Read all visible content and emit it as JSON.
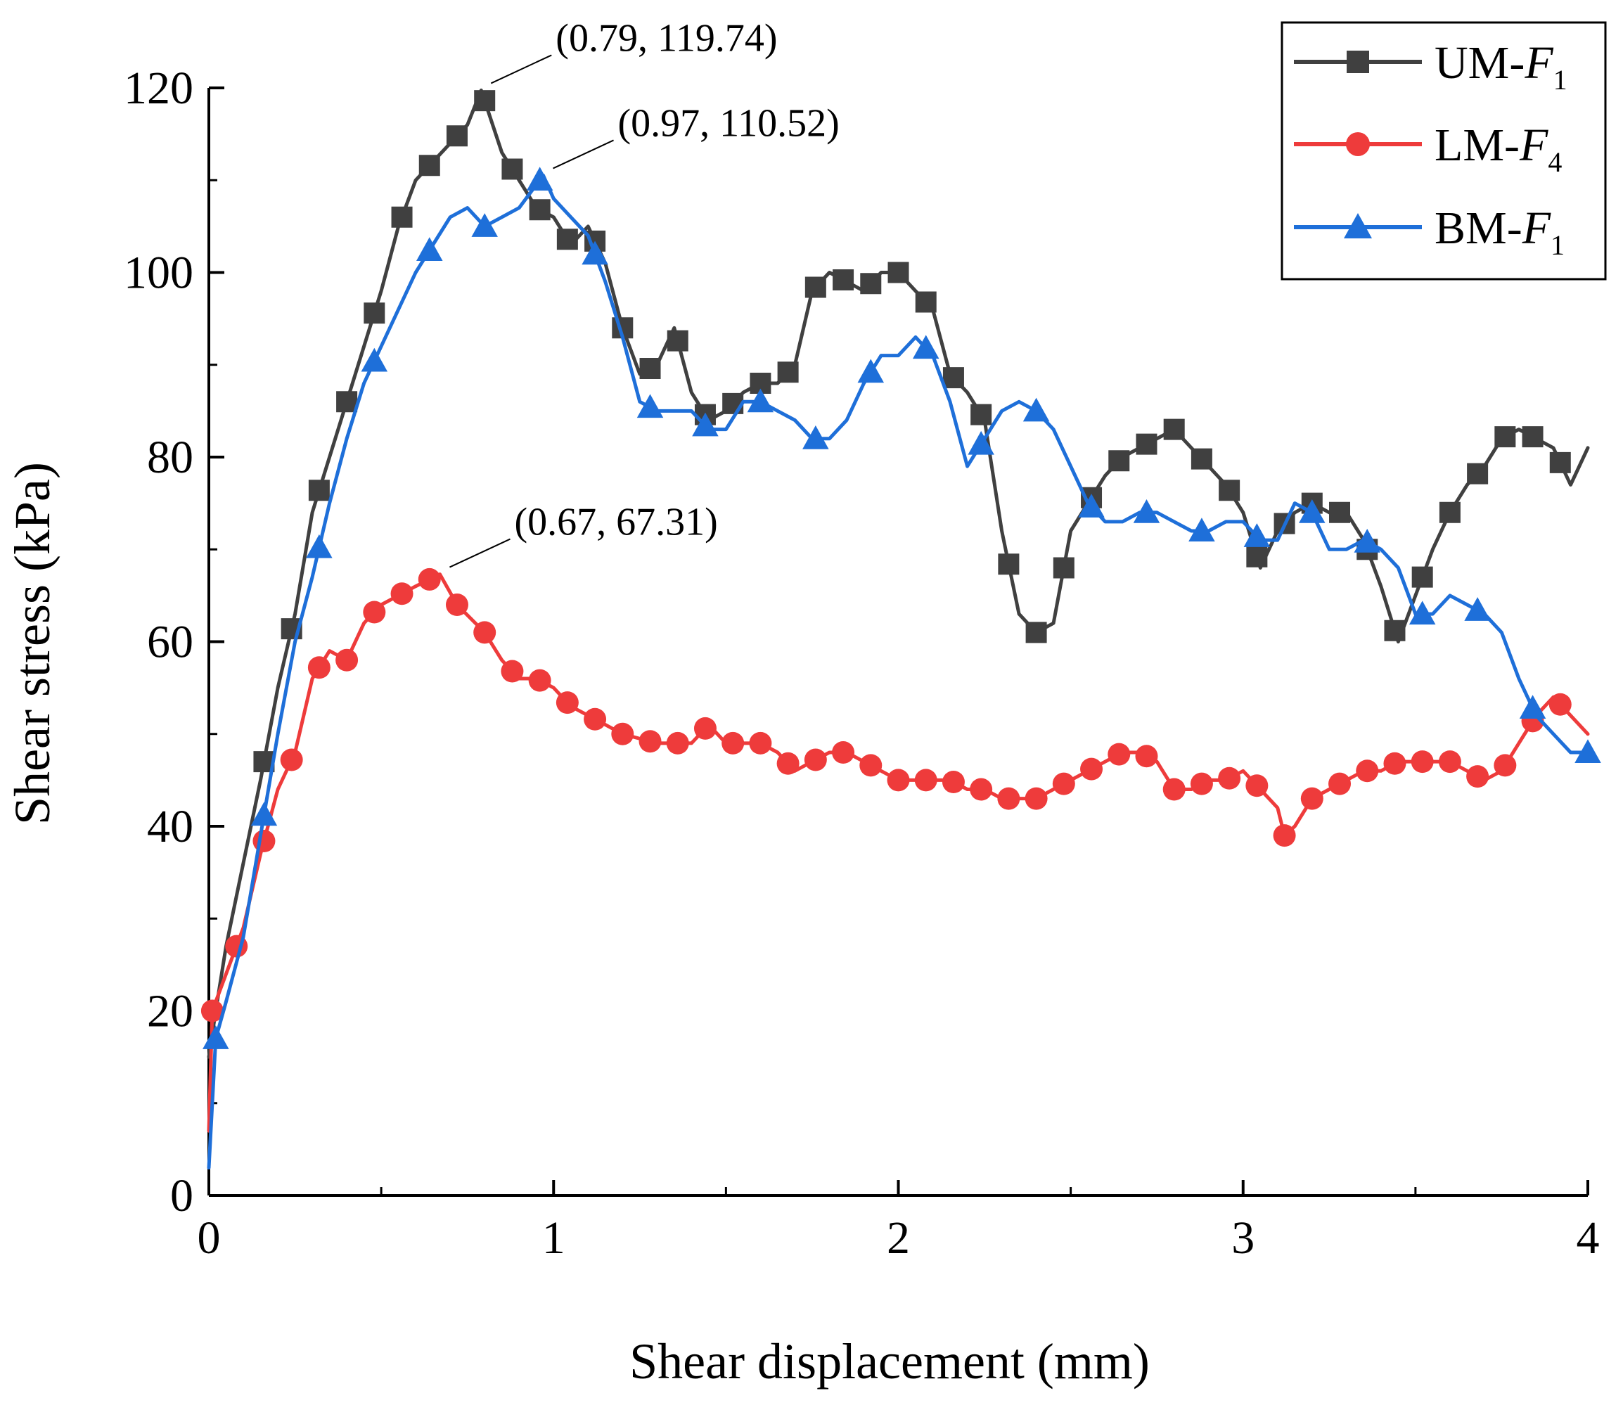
{
  "chart_data": {
    "type": "line",
    "title": "",
    "xlabel": "Shear displacement (mm)",
    "ylabel": "Shear stress (kPa)",
    "xlim": [
      0,
      4
    ],
    "ylim": [
      0,
      120
    ],
    "x_ticks": [
      0,
      1,
      2,
      3,
      4
    ],
    "y_ticks": [
      0,
      20,
      40,
      60,
      80,
      100,
      120
    ],
    "x_minor_step": 0.5,
    "y_minor_step": 10,
    "grid": false,
    "legend_position": "top-right",
    "series": [
      {
        "name": "UM-F1",
        "label_main": "UM-",
        "label_italic": "F",
        "label_sub": "1",
        "color": "#404040",
        "marker": "square",
        "x": [
          0,
          0.02,
          0.05,
          0.1,
          0.15,
          0.2,
          0.25,
          0.3,
          0.35,
          0.4,
          0.45,
          0.5,
          0.55,
          0.6,
          0.65,
          0.7,
          0.75,
          0.79,
          0.85,
          0.9,
          0.95,
          1.0,
          1.05,
          1.1,
          1.15,
          1.2,
          1.25,
          1.3,
          1.35,
          1.4,
          1.45,
          1.5,
          1.55,
          1.6,
          1.65,
          1.7,
          1.75,
          1.8,
          1.85,
          1.9,
          1.95,
          2.0,
          2.05,
          2.1,
          2.15,
          2.2,
          2.25,
          2.3,
          2.35,
          2.4,
          2.45,
          2.5,
          2.55,
          2.6,
          2.65,
          2.7,
          2.75,
          2.8,
          2.85,
          2.9,
          2.95,
          3.0,
          3.05,
          3.1,
          3.15,
          3.2,
          3.25,
          3.3,
          3.35,
          3.4,
          3.45,
          3.5,
          3.55,
          3.6,
          3.65,
          3.7,
          3.75,
          3.8,
          3.85,
          3.9,
          3.95,
          4.0
        ],
        "y": [
          15,
          20,
          27,
          36,
          45,
          55,
          63,
          74,
          80,
          86,
          92,
          98,
          105,
          110,
          112,
          114,
          116,
          119.74,
          113,
          110,
          107,
          106,
          103,
          105,
          101,
          94,
          89,
          90,
          94,
          87,
          84,
          85,
          87,
          88,
          88,
          90,
          98,
          100,
          99,
          98,
          100,
          100,
          98,
          96,
          89,
          87,
          84,
          72,
          63,
          61,
          62,
          72,
          75,
          78,
          80,
          81,
          82,
          83,
          81,
          79,
          77,
          74,
          68,
          72,
          74,
          75,
          74,
          74,
          71,
          66,
          60,
          65,
          70,
          74,
          77,
          79,
          82,
          83,
          82,
          81,
          77,
          81
        ],
        "markers_x": [
          0.16,
          0.24,
          0.32,
          0.4,
          0.48,
          0.56,
          0.64,
          0.72,
          0.8,
          0.88,
          0.96,
          1.04,
          1.12,
          1.2,
          1.28,
          1.36,
          1.44,
          1.52,
          1.6,
          1.68,
          1.76,
          1.84,
          1.92,
          2.0,
          2.08,
          2.16,
          2.24,
          2.32,
          2.4,
          2.48,
          2.56,
          2.64,
          2.72,
          2.8,
          2.88,
          2.96,
          3.04,
          3.12,
          3.2,
          3.28,
          3.36,
          3.44,
          3.52,
          3.6,
          3.68,
          3.76,
          3.84,
          3.92
        ]
      },
      {
        "name": "LM-F4",
        "label_main": "LM-",
        "label_italic": "F",
        "label_sub": "4",
        "color": "#ee3b3b",
        "marker": "circle",
        "x": [
          0,
          0.01,
          0.03,
          0.06,
          0.1,
          0.15,
          0.2,
          0.25,
          0.3,
          0.35,
          0.4,
          0.45,
          0.5,
          0.55,
          0.6,
          0.67,
          0.72,
          0.8,
          0.85,
          0.9,
          0.95,
          1.0,
          1.05,
          1.1,
          1.15,
          1.2,
          1.3,
          1.4,
          1.45,
          1.5,
          1.55,
          1.6,
          1.65,
          1.7,
          1.75,
          1.8,
          1.85,
          1.9,
          1.95,
          2.0,
          2.05,
          2.1,
          2.15,
          2.2,
          2.25,
          2.3,
          2.35,
          2.4,
          2.45,
          2.5,
          2.55,
          2.6,
          2.65,
          2.7,
          2.75,
          2.8,
          2.85,
          2.9,
          2.95,
          3.0,
          3.05,
          3.1,
          3.12,
          3.15,
          3.2,
          3.25,
          3.3,
          3.35,
          3.4,
          3.45,
          3.5,
          3.55,
          3.6,
          3.65,
          3.7,
          3.75,
          3.8,
          3.85,
          3.9,
          3.95,
          4.0
        ],
        "y": [
          7,
          20,
          22,
          25,
          29,
          37,
          44,
          48,
          56,
          59,
          58,
          62,
          64,
          65,
          66,
          67.31,
          64,
          61,
          58,
          56,
          56,
          55,
          53,
          52,
          51,
          50,
          49,
          49,
          51,
          49,
          49,
          49,
          48,
          46,
          47,
          48,
          48,
          47,
          46,
          45,
          45,
          45,
          45,
          44,
          44,
          43,
          43,
          43,
          44,
          45,
          46,
          47,
          48,
          48,
          47,
          44,
          44,
          45,
          45,
          46,
          44,
          42,
          39,
          40,
          43,
          44,
          45,
          46,
          46,
          47,
          47,
          47,
          47,
          46,
          45,
          46,
          49,
          52,
          54,
          52,
          50
        ],
        "markers_x": [
          0.01,
          0.08,
          0.16,
          0.24,
          0.32,
          0.4,
          0.48,
          0.56,
          0.64,
          0.72,
          0.8,
          0.88,
          0.96,
          1.04,
          1.12,
          1.2,
          1.28,
          1.36,
          1.44,
          1.52,
          1.6,
          1.68,
          1.76,
          1.84,
          1.92,
          2.0,
          2.08,
          2.16,
          2.24,
          2.32,
          2.4,
          2.48,
          2.56,
          2.64,
          2.72,
          2.8,
          2.88,
          2.96,
          3.04,
          3.12,
          3.2,
          3.28,
          3.36,
          3.44,
          3.52,
          3.6,
          3.68,
          3.76,
          3.84,
          3.92
        ]
      },
      {
        "name": "BM-F1",
        "label_main": "BM-",
        "label_italic": "F",
        "label_sub": "1",
        "color": "#1e6fd9",
        "marker": "triangle",
        "x": [
          0,
          0.02,
          0.05,
          0.1,
          0.15,
          0.2,
          0.25,
          0.3,
          0.35,
          0.4,
          0.45,
          0.5,
          0.55,
          0.6,
          0.65,
          0.7,
          0.75,
          0.8,
          0.85,
          0.9,
          0.97,
          1.0,
          1.05,
          1.1,
          1.15,
          1.2,
          1.25,
          1.3,
          1.35,
          1.4,
          1.45,
          1.5,
          1.55,
          1.6,
          1.65,
          1.7,
          1.75,
          1.8,
          1.85,
          1.9,
          1.95,
          2.0,
          2.05,
          2.1,
          2.15,
          2.2,
          2.25,
          2.3,
          2.35,
          2.4,
          2.45,
          2.5,
          2.55,
          2.6,
          2.65,
          2.7,
          2.75,
          2.8,
          2.85,
          2.9,
          2.95,
          3.0,
          3.05,
          3.1,
          3.15,
          3.2,
          3.25,
          3.3,
          3.35,
          3.4,
          3.45,
          3.5,
          3.55,
          3.6,
          3.65,
          3.7,
          3.75,
          3.8,
          3.85,
          3.9,
          3.95,
          4.0
        ],
        "y": [
          3,
          17,
          21,
          28,
          39,
          50,
          60,
          67,
          75,
          82,
          88,
          92,
          96,
          100,
          103,
          106,
          107,
          105,
          106,
          107,
          110.52,
          108,
          106,
          104,
          99,
          93,
          86,
          85,
          85,
          85,
          83,
          83,
          86,
          86,
          85,
          84,
          82,
          82,
          84,
          88,
          91,
          91,
          93,
          91,
          86,
          79,
          82,
          85,
          86,
          85,
          83,
          79,
          75,
          73,
          73,
          74,
          74,
          73,
          72,
          72,
          73,
          73,
          71,
          71,
          75,
          74,
          70,
          70,
          71,
          70,
          68,
          63,
          63,
          65,
          64,
          63,
          61,
          56,
          52,
          50,
          48,
          48
        ],
        "markers_x": [
          0.02,
          0.16,
          0.32,
          0.48,
          0.64,
          0.8,
          0.96,
          1.12,
          1.28,
          1.44,
          1.6,
          1.76,
          1.92,
          2.08,
          2.24,
          2.4,
          2.56,
          2.72,
          2.88,
          3.04,
          3.2,
          3.36,
          3.52,
          3.68,
          3.84,
          4.0
        ]
      }
    ],
    "annotations": [
      {
        "text": "(0.79, 119.74)",
        "x": 0.79,
        "y": 119.74,
        "series": "UM-F1"
      },
      {
        "text": "(0.97, 110.52)",
        "x": 0.97,
        "y": 110.52,
        "series": "BM-F1"
      },
      {
        "text": "(0.67, 67.31)",
        "x": 0.67,
        "y": 67.31,
        "series": "LM-F4"
      }
    ]
  }
}
